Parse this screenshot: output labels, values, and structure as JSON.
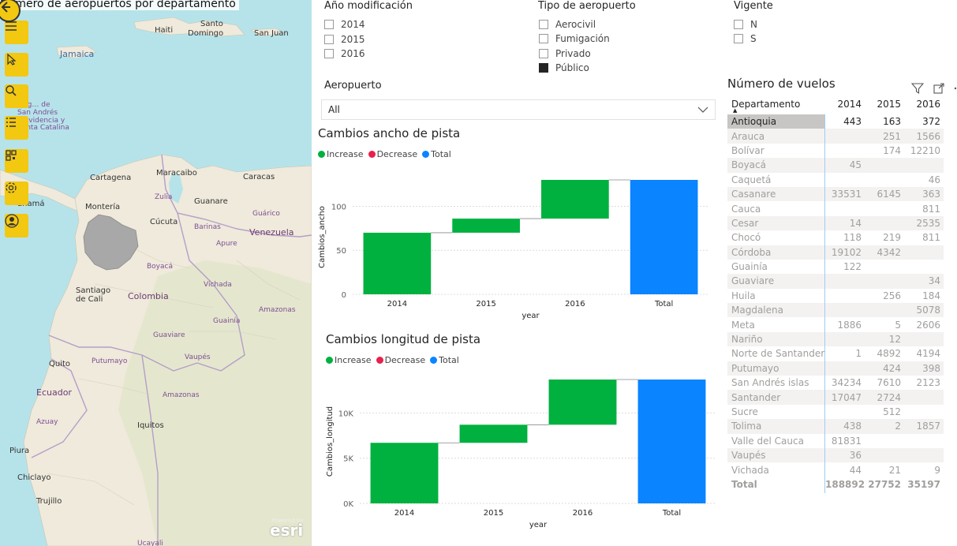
{
  "map": {
    "title": "Número de aeropuertos por departamento",
    "attribution": "esri",
    "labels": [
      {
        "text": "Jamaica",
        "cls": "blue"
      },
      {
        "text": "Haiti",
        "cls": "dark"
      },
      {
        "text": "Santo",
        "cls": "dark"
      },
      {
        "text": "Domingo",
        "cls": "dark"
      },
      {
        "text": "San Juan",
        "cls": "dark"
      },
      {
        "text": "Aitig… de",
        "cls": "purple"
      },
      {
        "text": "San Andrés",
        "cls": "purple"
      },
      {
        "text": "Providencia y",
        "cls": "purple"
      },
      {
        "text": "Santa Catalina",
        "cls": "purple"
      },
      {
        "text": "Cartagena",
        "cls": "dark"
      },
      {
        "text": "Maracaibo",
        "cls": "dark"
      },
      {
        "text": "Caracas",
        "cls": "dark"
      },
      {
        "text": "anamá",
        "cls": "dark"
      },
      {
        "text": "Montería",
        "cls": "dark"
      },
      {
        "text": "Zulia",
        "cls": "purple"
      },
      {
        "text": "Guanare",
        "cls": "dark"
      },
      {
        "text": "Guárico",
        "cls": "purple"
      },
      {
        "text": "Cúcuta",
        "cls": "dark"
      },
      {
        "text": "Barinas",
        "cls": "purple"
      },
      {
        "text": "Venezuela",
        "cls": "big"
      },
      {
        "text": "Apure",
        "cls": "purple"
      },
      {
        "text": "Boyacá",
        "cls": "purple"
      },
      {
        "text": "Vichada",
        "cls": "purple"
      },
      {
        "text": "Santiago",
        "cls": "dark"
      },
      {
        "text": "de Cali",
        "cls": "dark"
      },
      {
        "text": "Colombia",
        "cls": "big"
      },
      {
        "text": "Amazonas",
        "cls": "purple"
      },
      {
        "text": "Guainía",
        "cls": "purple"
      },
      {
        "text": "Guaviare",
        "cls": "purple"
      },
      {
        "text": "Quito",
        "cls": "dark"
      },
      {
        "text": "Putumayo",
        "cls": "purple"
      },
      {
        "text": "Vaupés",
        "cls": "purple"
      },
      {
        "text": "Ecuador",
        "cls": "big"
      },
      {
        "text": "Azuay",
        "cls": "purple"
      },
      {
        "text": "Amazonas",
        "cls": "purple"
      },
      {
        "text": "Iquitos",
        "cls": "dark"
      },
      {
        "text": "Piura",
        "cls": "dark"
      },
      {
        "text": "Chiclayo",
        "cls": "dark"
      },
      {
        "text": "Trujillo",
        "cls": "dark"
      },
      {
        "text": "Ucayali",
        "cls": "purple"
      }
    ]
  },
  "toolbar": {
    "buttons": [
      "back-icon",
      "menu-icon",
      "pointer-icon",
      "search-icon",
      "list-icon",
      "qr-icon",
      "settings-icon",
      "user-icon"
    ]
  },
  "slicers": {
    "year": {
      "title": "Año modificación",
      "items": [
        {
          "label": "2014",
          "checked": false
        },
        {
          "label": "2015",
          "checked": false
        },
        {
          "label": "2016",
          "checked": false
        }
      ]
    },
    "type": {
      "title": "Tipo de aeropuerto",
      "items": [
        {
          "label": "Aerocivil",
          "checked": false
        },
        {
          "label": "Fumigación",
          "checked": false
        },
        {
          "label": "Privado",
          "checked": false
        },
        {
          "label": "Público",
          "checked": true
        }
      ]
    },
    "vigente": {
      "title": "Vigente",
      "items": [
        {
          "label": "N",
          "checked": false
        },
        {
          "label": "S",
          "checked": false
        }
      ]
    },
    "airport": {
      "title": "Aeropuerto",
      "value": "All"
    }
  },
  "colors": {
    "increase": "#00b140",
    "decrease": "#e8204e",
    "total": "#0a84ff"
  },
  "legend": {
    "increase": "Increase",
    "decrease": "Decrease",
    "total": "Total"
  },
  "chart_data": [
    {
      "type": "bar",
      "subtype": "waterfall",
      "title": "Cambios ancho de pista",
      "xlabel": "year",
      "ylabel": "Cambios_ancho",
      "categories": [
        "2014",
        "2015",
        "2016",
        "Total"
      ],
      "steps": [
        {
          "category": "2014",
          "start": 0,
          "end": 70,
          "kind": "increase"
        },
        {
          "category": "2015",
          "start": 70,
          "end": 86,
          "kind": "increase"
        },
        {
          "category": "2016",
          "start": 86,
          "end": 130,
          "kind": "increase"
        },
        {
          "category": "Total",
          "start": 0,
          "end": 130,
          "kind": "total"
        }
      ],
      "ylim": [
        0,
        130
      ],
      "yticks": [
        0,
        50,
        100
      ],
      "ytick_labels": [
        "0",
        "50",
        "100"
      ]
    },
    {
      "type": "bar",
      "subtype": "waterfall",
      "title": "Cambios longitud de pista",
      "xlabel": "year",
      "ylabel": "Cambios_longitud",
      "categories": [
        "2014",
        "2015",
        "2016",
        "Total"
      ],
      "steps": [
        {
          "category": "2014",
          "start": 0,
          "end": 6700,
          "kind": "increase"
        },
        {
          "category": "2015",
          "start": 6700,
          "end": 8700,
          "kind": "increase"
        },
        {
          "category": "2016",
          "start": 8700,
          "end": 13700,
          "kind": "increase"
        },
        {
          "category": "Total",
          "start": 0,
          "end": 13700,
          "kind": "total"
        }
      ],
      "ylim": [
        0,
        13700
      ],
      "yticks": [
        0,
        5000,
        10000
      ],
      "ytick_labels": [
        "0K",
        "5K",
        "10K"
      ]
    }
  ],
  "table": {
    "title": "Número de vuelos",
    "columns": [
      "Departamento",
      "2014",
      "2015",
      "2016"
    ],
    "rows": [
      [
        "Antioquia",
        "443",
        "163",
        "372"
      ],
      [
        "Arauca",
        "",
        "251",
        "1566"
      ],
      [
        "Bolívar",
        "",
        "174",
        "12210"
      ],
      [
        "Boyacá",
        "45",
        "",
        ""
      ],
      [
        "Caquetá",
        "",
        "",
        "46"
      ],
      [
        "Casanare",
        "33531",
        "6145",
        "363"
      ],
      [
        "Cauca",
        "",
        "",
        "811"
      ],
      [
        "Cesar",
        "14",
        "",
        "2535"
      ],
      [
        "Chocó",
        "118",
        "219",
        "811"
      ],
      [
        "Córdoba",
        "19102",
        "4342",
        ""
      ],
      [
        "Guainía",
        "122",
        "",
        ""
      ],
      [
        "Guaviare",
        "",
        "",
        "34"
      ],
      [
        "Huila",
        "",
        "256",
        "184"
      ],
      [
        "Magdalena",
        "",
        "",
        "5078"
      ],
      [
        "Meta",
        "1886",
        "5",
        "2606"
      ],
      [
        "Nariño",
        "",
        "12",
        ""
      ],
      [
        "Norte de Santander",
        "1",
        "4892",
        "4194"
      ],
      [
        "Putumayo",
        "",
        "424",
        "398"
      ],
      [
        "San Andrés islas",
        "34234",
        "7610",
        "2123"
      ],
      [
        "Santander",
        "17047",
        "2724",
        ""
      ],
      [
        "Sucre",
        "",
        "512",
        ""
      ],
      [
        "Tolima",
        "438",
        "2",
        "1857"
      ],
      [
        "Valle del Cauca",
        "81831",
        "",
        ""
      ],
      [
        "Vaupés",
        "36",
        "",
        ""
      ],
      [
        "Vichada",
        "44",
        "21",
        "9"
      ]
    ],
    "total": [
      "Total",
      "188892",
      "27752",
      "35197"
    ],
    "selected_row": "Antioquia",
    "sort_indicator": "▲"
  }
}
